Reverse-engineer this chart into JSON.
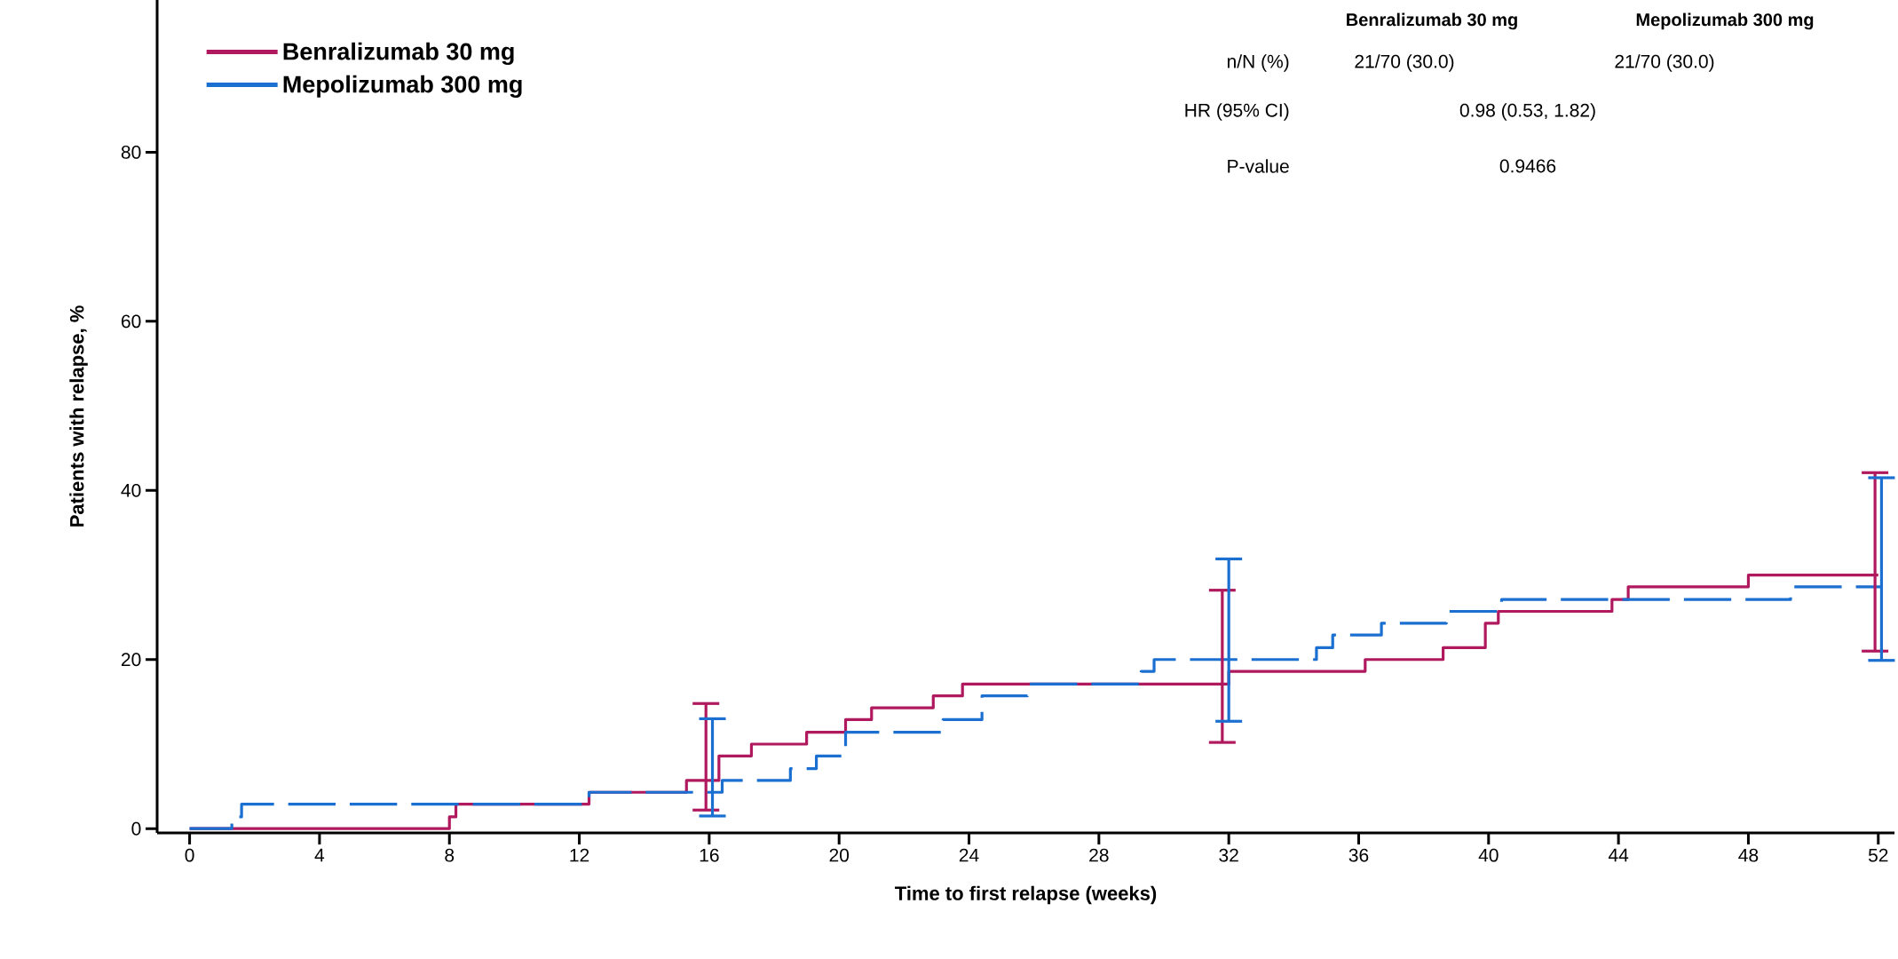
{
  "chart_data": {
    "type": "line",
    "xlabel": "Time to first relapse (weeks)",
    "ylabel": "Patients with relapse, %",
    "xlim": [
      -1,
      52.5
    ],
    "ylim": [
      -0.5,
      98
    ],
    "xticks": [
      0,
      4,
      8,
      12,
      16,
      20,
      24,
      28,
      32,
      36,
      40,
      44,
      48,
      52
    ],
    "yticks": [
      0,
      20,
      40,
      60,
      80
    ],
    "legend": "top left",
    "marker": "none",
    "series": [
      {
        "name": "Benralizumab 30 mg",
        "type": "step",
        "color": "#b0195d",
        "line_style": "solid",
        "x": [
          0,
          8.0,
          8.2,
          12.3,
          15.3,
          15.9,
          16.3,
          17.3,
          19.0,
          20.2,
          21.0,
          22.9,
          23.8,
          31.8,
          32.0,
          36.2,
          38.6,
          39.9,
          40.3,
          43.8,
          44.3,
          48.0,
          51.9,
          52.0
        ],
        "values": [
          0,
          1.4,
          2.9,
          4.3,
          5.7,
          5.7,
          8.6,
          10.0,
          11.4,
          12.9,
          14.3,
          15.7,
          17.1,
          17.1,
          18.6,
          20.0,
          21.4,
          24.3,
          25.7,
          27.1,
          28.6,
          30.0,
          30.0,
          30.0
        ],
        "errors": [
          null,
          null,
          null,
          null,
          null,
          [
            2.2,
            14.8
          ],
          null,
          null,
          null,
          null,
          null,
          null,
          null,
          [
            10.2,
            28.2
          ],
          null,
          null,
          null,
          null,
          null,
          null,
          null,
          null,
          [
            21.0,
            42.1
          ],
          null
        ]
      },
      {
        "name": "Mepolizumab 300 mg",
        "type": "step",
        "color": "#1a6fd1",
        "line_style": "dashed",
        "x": [
          0,
          1.3,
          1.6,
          12.3,
          16.1,
          16.4,
          18.5,
          19.3,
          20.2,
          23.2,
          24.4,
          25.8,
          29.3,
          29.7,
          32.0,
          34.7,
          35.2,
          36.7,
          38.7,
          40.4,
          49.3,
          52.1
        ],
        "values": [
          0,
          1.4,
          2.9,
          4.3,
          4.3,
          5.7,
          7.1,
          8.6,
          11.4,
          12.9,
          15.7,
          17.1,
          18.6,
          20.0,
          20.0,
          21.4,
          22.9,
          24.3,
          25.7,
          27.1,
          28.6,
          28.6
        ],
        "errors": [
          null,
          null,
          null,
          null,
          [
            1.5,
            13.0
          ],
          null,
          null,
          null,
          null,
          null,
          null,
          null,
          null,
          null,
          [
            12.7,
            31.9
          ],
          null,
          null,
          null,
          null,
          null,
          null,
          [
            19.9,
            41.5
          ]
        ]
      }
    ],
    "annotations": [
      "Benralizumab 30 mg",
      "Mepolizumab 300 mg",
      "n/N (%)",
      "21/70 (30.0)",
      "21/70 (30.0)",
      "HR (95% CI)",
      "0.98 (0.53, 1.82)",
      "P-value",
      "0.9466"
    ]
  }
}
